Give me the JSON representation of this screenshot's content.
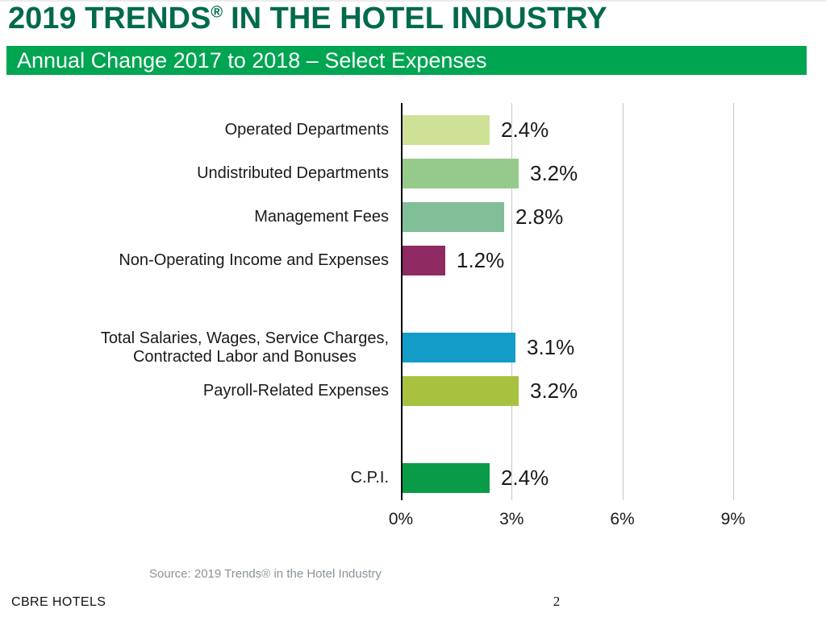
{
  "title": {
    "main": "2019 TRENDS",
    "registered_mark": "®",
    "rest": "IN THE HOTEL INDUSTRY"
  },
  "banner": {
    "text": "Annual Change 2017 to 2018 – Select Expenses"
  },
  "chart_data": {
    "type": "bar",
    "orientation": "horizontal",
    "title": "Annual Change 2017 to 2018 – Select Expenses",
    "xlabel": "",
    "ylabel": "",
    "xlim": [
      0,
      9.95
    ],
    "x_tick_values": [
      0,
      3,
      6,
      9
    ],
    "x_tick_labels": [
      "0%",
      "3%",
      "6%",
      "9%"
    ],
    "gridlines": [
      3,
      6,
      9
    ],
    "grid_on": true,
    "legend": "none",
    "categories": [
      "Operated Departments",
      "Undistributed Departments",
      "Management Fees",
      "Non-Operating Income and Expenses",
      "Total Salaries, Wages, Service Charges, Contracted Labor and Bonuses",
      "Payroll-Related Expenses",
      "C.P.I."
    ],
    "values": [
      2.4,
      3.2,
      2.8,
      1.2,
      3.1,
      3.2,
      2.4
    ],
    "bars": [
      {
        "label": "Operated Departments",
        "value": 2.4,
        "value_label": "2.4%",
        "color": "#CFE197",
        "slot": 0
      },
      {
        "label": "Undistributed Departments",
        "value": 3.2,
        "value_label": "3.2%",
        "color": "#96CA8A",
        "slot": 1
      },
      {
        "label": "Management Fees",
        "value": 2.8,
        "value_label": "2.8%",
        "color": "#80BF98",
        "slot": 2
      },
      {
        "label": "Non-Operating Income and Expenses",
        "value": 1.2,
        "value_label": "1.2%",
        "color": "#8F2A62",
        "slot": 3
      },
      {
        "label": "Total Salaries, Wages, Service Charges,\nContracted Labor and Bonuses",
        "value": 3.1,
        "value_label": "3.1%",
        "color": "#149CC8",
        "slot": 5
      },
      {
        "label": "Payroll-Related Expenses",
        "value": 3.2,
        "value_label": "3.2%",
        "color": "#A8C240",
        "slot": 6
      },
      {
        "label": "C.P.I.",
        "value": 2.4,
        "value_label": "2.4%",
        "color": "#0A9B48",
        "slot": 8
      }
    ]
  },
  "footer": {
    "source": "Source: 2019 Trends® in the Hotel Industry",
    "brand": "CBRE HOTELS",
    "page_number": "2"
  },
  "colors": {
    "title_green": "#006A4D",
    "banner_green": "#00A551",
    "grid_gray": "#C8C8C8",
    "axis_black": "#000000",
    "text_dark": "#1A1A1A",
    "source_gray": "#8A9399"
  }
}
